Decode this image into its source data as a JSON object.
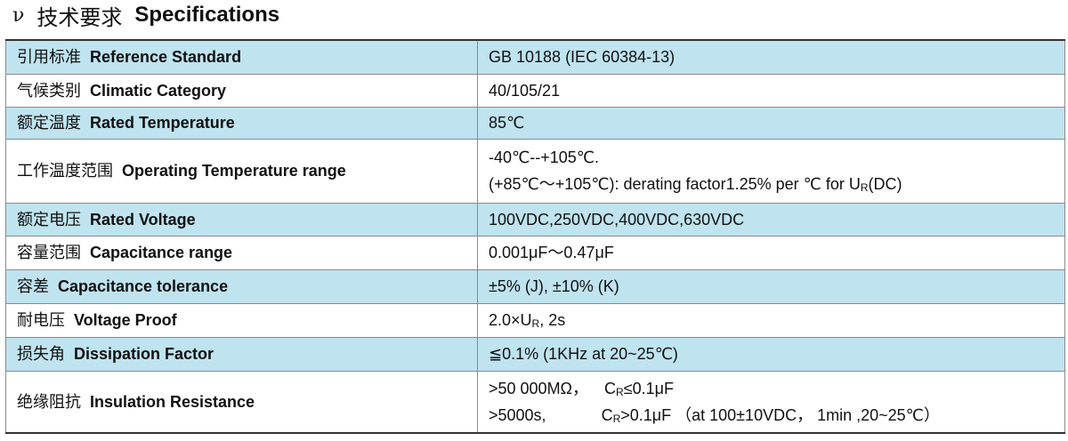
{
  "heading": {
    "bullet": "ν",
    "title_cn": "技术要求",
    "title_en": "Specifications"
  },
  "colors": {
    "shaded_row": "#bfe3ef",
    "border": "#8a8a8a"
  },
  "rows": [
    {
      "label_cn": "引用标准",
      "label_en": "Reference Standard",
      "value": "GB 10188 (IEC 60384-13)"
    },
    {
      "label_cn": "气候类别",
      "label_en": "Climatic Category",
      "value": "40/105/21"
    },
    {
      "label_cn": "额定温度",
      "label_en": "Rated Temperature",
      "value": "85℃"
    },
    {
      "label_cn": "工作温度范围",
      "label_en": "Operating Temperature range",
      "line1": "-40℃--+105℃.",
      "line2_pre": "(+85℃～+105℃): derating factor1.25% per ℃ for U",
      "line2_sub": "R",
      "line2_post": "(DC)"
    },
    {
      "label_cn": "额定电压",
      "label_en": "Rated Voltage",
      "value": "100VDC,250VDC,400VDC,630VDC"
    },
    {
      "label_cn": "容量范围",
      "label_en": "Capacitance range",
      "value": "0.001μF～0.47μF"
    },
    {
      "label_cn": "容差",
      "label_en": "Capacitance tolerance",
      "value": "±5% (J), ±10% (K)"
    },
    {
      "label_cn": "耐电压",
      "label_en": "Voltage Proof",
      "pre": "2.0×U",
      "sub": "R",
      "post": ", 2s"
    },
    {
      "label_cn": "损失角",
      "label_en": "Dissipation Factor",
      "value": "≦0.1% (1KHz at 20~25℃)"
    },
    {
      "label_cn": "绝缘阻抗",
      "label_en": "Insulation Resistance",
      "line1_a": ">50 000MΩ，",
      "line1_c": "C",
      "line1_sub": "R",
      "line1_d": "≤0.1μF",
      "line2_a": ">5000s,",
      "line2_c": "C",
      "line2_sub": "R",
      "line2_d": ">0.1μF （at 100±10VDC，  1min ,20~25℃）"
    }
  ]
}
